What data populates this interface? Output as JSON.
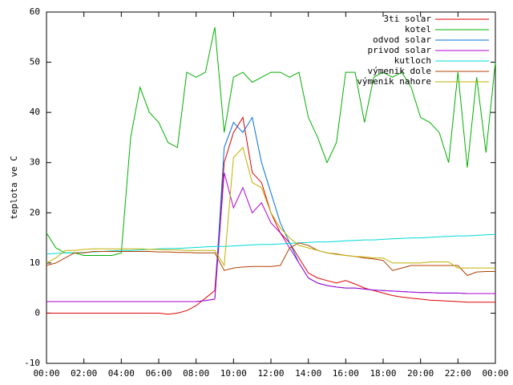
{
  "chart_data": {
    "type": "line",
    "y_label": "teplota ve C",
    "x": [
      0,
      0.5,
      1,
      1.5,
      2,
      2.5,
      3,
      3.5,
      4,
      4.5,
      5,
      5.5,
      6,
      6.5,
      7,
      7.5,
      8,
      8.5,
      9,
      9.5,
      10,
      10.5,
      11,
      11.5,
      12,
      12.5,
      13,
      13.5,
      14,
      14.5,
      15,
      15.5,
      16,
      16.5,
      17,
      17.5,
      18,
      18.5,
      19,
      19.5,
      20,
      20.5,
      21,
      21.5,
      22,
      22.5,
      23,
      23.5,
      24
    ],
    "xlim": [
      0,
      24
    ],
    "xticks": [
      {
        "value": 0,
        "label": "00:00"
      },
      {
        "value": 2,
        "label": "02:00"
      },
      {
        "value": 4,
        "label": "04:00"
      },
      {
        "value": 6,
        "label": "06:00"
      },
      {
        "value": 8,
        "label": "08:00"
      },
      {
        "value": 10,
        "label": "10:00"
      },
      {
        "value": 12,
        "label": "12:00"
      },
      {
        "value": 14,
        "label": "14:00"
      },
      {
        "value": 16,
        "label": "16:00"
      },
      {
        "value": 18,
        "label": "18:00"
      },
      {
        "value": 20,
        "label": "20:00"
      },
      {
        "value": 22,
        "label": "22:00"
      },
      {
        "value": 24,
        "label": "00:00"
      }
    ],
    "ylim": [
      -10,
      60
    ],
    "yticks": [
      -10,
      0,
      10,
      20,
      30,
      40,
      50,
      60
    ],
    "legend": "top-right",
    "series": [
      {
        "name": "3ti solar",
        "color": "#e00000",
        "values": [
          0,
          0,
          0,
          0,
          0,
          0,
          0,
          0,
          0,
          0,
          0,
          0,
          0,
          -0.2,
          0,
          0.5,
          1.5,
          3,
          4.5,
          30,
          36,
          39,
          28,
          26,
          20,
          16,
          14,
          11,
          8,
          7,
          6.5,
          6,
          6.5,
          5.8,
          5,
          4.5,
          4,
          3.5,
          3.2,
          3,
          2.8,
          2.6,
          2.5,
          2.4,
          2.3,
          2.2,
          2.2,
          2.2,
          2.2
        ]
      },
      {
        "name": "kotel",
        "color": "#00b000",
        "values": [
          16,
          13,
          12,
          12,
          11.5,
          11.5,
          11.5,
          11.5,
          12,
          35,
          45,
          40,
          38,
          34,
          33,
          48,
          47,
          48,
          57,
          36,
          47,
          48,
          46,
          47,
          48,
          48,
          47,
          48,
          39,
          35,
          30,
          34,
          48,
          48,
          38,
          47,
          48,
          47,
          48,
          45,
          39,
          38,
          36,
          30,
          48,
          29,
          47,
          32,
          50
        ]
      },
      {
        "name": "odvod solar",
        "color": "#0070e0",
        "values": [
          2.3,
          2.3,
          2.3,
          2.3,
          2.3,
          2.3,
          2.3,
          2.3,
          2.3,
          2.3,
          2.3,
          2.3,
          2.3,
          2.3,
          2.3,
          2.3,
          2.3,
          2.5,
          2.8,
          33,
          38,
          36,
          39,
          30,
          24,
          18,
          14,
          10,
          7,
          6,
          5.5,
          5.2,
          5,
          5,
          4.8,
          4.6,
          4.5,
          4.4,
          4.3,
          4.2,
          4.1,
          4.1,
          4,
          4,
          4,
          3.9,
          3.9,
          3.9,
          3.9
        ]
      },
      {
        "name": "privod solar",
        "color": "#b000d0",
        "values": [
          2.3,
          2.3,
          2.3,
          2.3,
          2.3,
          2.3,
          2.3,
          2.3,
          2.3,
          2.3,
          2.3,
          2.3,
          2.3,
          2.3,
          2.3,
          2.3,
          2.3,
          2.5,
          2.8,
          28,
          21,
          25,
          20,
          22,
          18,
          16,
          13,
          10,
          7,
          6,
          5.5,
          5.2,
          5,
          5,
          4.8,
          4.6,
          4.5,
          4.4,
          4.3,
          4.2,
          4.1,
          4.1,
          4,
          4,
          4,
          3.9,
          3.9,
          3.9,
          3.9
        ]
      },
      {
        "name": "kutloch",
        "color": "#00d8d8",
        "values": [
          11.8,
          11.9,
          12.0,
          12.0,
          12.1,
          12.2,
          12.3,
          12.4,
          12.5,
          12.5,
          12.6,
          12.7,
          12.8,
          12.9,
          12.9,
          13.0,
          13.1,
          13.2,
          13.3,
          13.3,
          13.4,
          13.5,
          13.6,
          13.7,
          13.7,
          13.8,
          13.9,
          14.0,
          14.1,
          14.2,
          14.2,
          14.3,
          14.4,
          14.5,
          14.6,
          14.6,
          14.7,
          14.8,
          14.9,
          15.0,
          15.0,
          15.1,
          15.2,
          15.3,
          15.4,
          15.4,
          15.5,
          15.6,
          15.7
        ]
      },
      {
        "name": "výmenik dole",
        "color": "#b04000",
        "values": [
          9.5,
          10,
          11,
          12,
          12,
          12.3,
          12.3,
          12.3,
          12.3,
          12.3,
          12.3,
          12.3,
          12.2,
          12.2,
          12.1,
          12.1,
          12,
          12,
          12,
          8.5,
          9,
          9.2,
          9.3,
          9.3,
          9.3,
          9.5,
          13,
          14,
          13.5,
          12.5,
          12,
          11.8,
          11.5,
          11.3,
          11,
          10.8,
          10.5,
          8.5,
          9,
          9.5,
          9.5,
          9.5,
          9.5,
          9.5,
          9.5,
          7.5,
          8.2,
          8.3,
          8.3
        ]
      },
      {
        "name": "výmenik nahore",
        "color": "#c0b000",
        "values": [
          10,
          11,
          12.5,
          12.5,
          12.7,
          12.8,
          12.8,
          12.8,
          12.8,
          12.8,
          12.8,
          12.7,
          12.7,
          12.6,
          12.6,
          12.5,
          12.5,
          12.5,
          12.5,
          9.5,
          31,
          33,
          26,
          25,
          20,
          17,
          15,
          13.5,
          13,
          12.5,
          12,
          11.7,
          11.5,
          11.3,
          11.2,
          11,
          11,
          10,
          10,
          10,
          10,
          10.2,
          10.2,
          10.2,
          9,
          9,
          9,
          9,
          9
        ]
      }
    ]
  }
}
